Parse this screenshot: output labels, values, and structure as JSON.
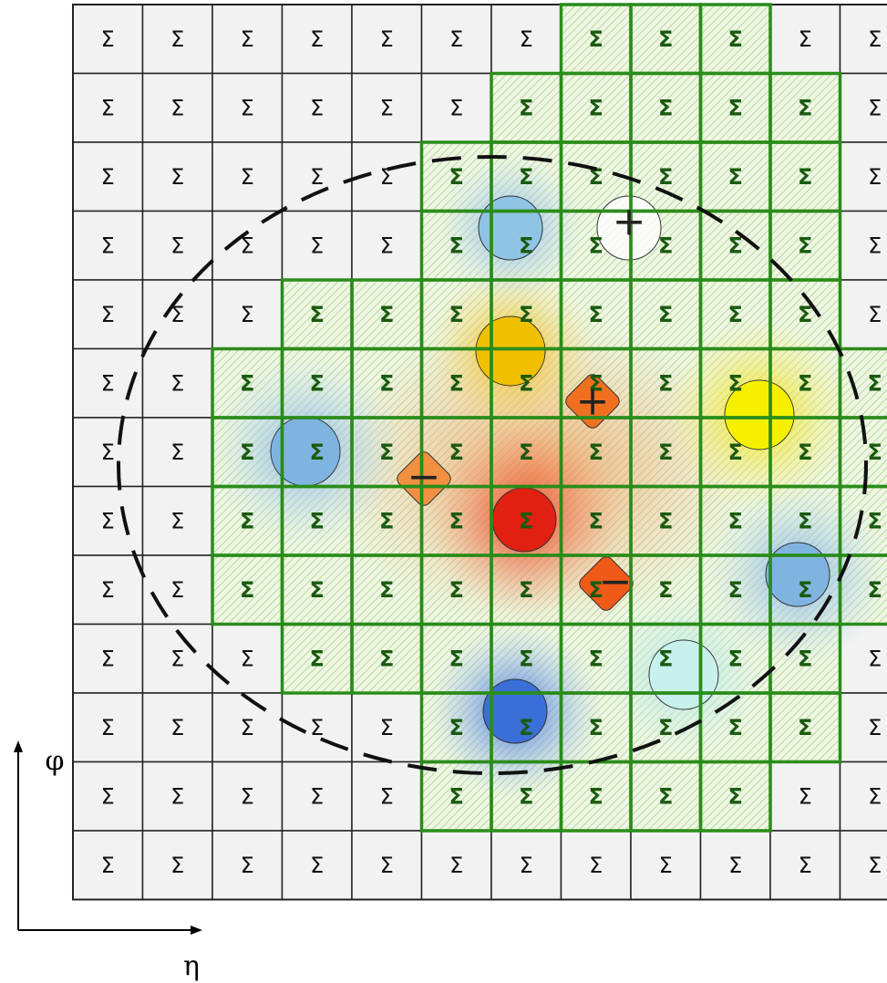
{
  "grid": {
    "cell_label": "Σ",
    "columns": 12,
    "highlighted_columns": [
      [
        7,
        9
      ],
      [
        6,
        10
      ],
      [
        5,
        10
      ],
      [
        5,
        10
      ],
      [
        3,
        10
      ],
      [
        2,
        11
      ],
      [
        2,
        11
      ],
      [
        2,
        11
      ],
      [
        2,
        11
      ],
      [
        3,
        10
      ],
      [
        5,
        10
      ],
      [
        5,
        9
      ],
      null
    ]
  },
  "markers": [
    "+",
    "+",
    "−",
    "−"
  ],
  "axes": {
    "vertical": "φ",
    "horizontal": "η"
  }
}
